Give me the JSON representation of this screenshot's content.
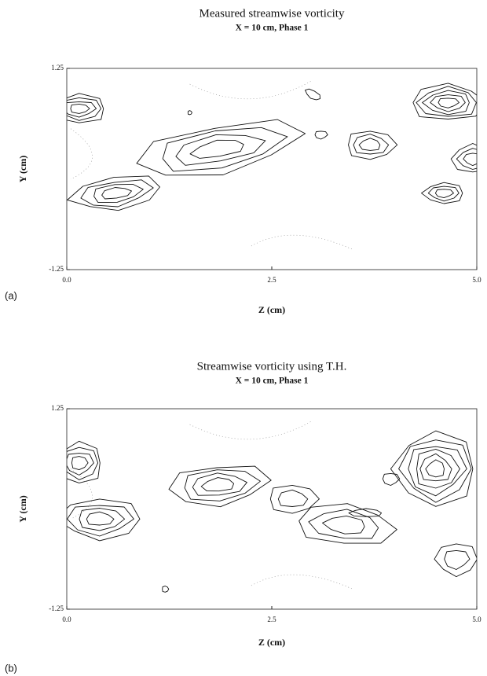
{
  "chart_data": [
    {
      "type": "contour",
      "title": "Measured streamwise vorticity",
      "subtitle": "X = 10 cm, Phase 1",
      "xlabel": "Z (cm)",
      "ylabel": "Y (cm)",
      "panel": "(a)",
      "xlim": [
        0,
        5
      ],
      "xticks": [
        {
          "value": 0,
          "label": "0.0"
        },
        2.5,
        {
          "value": 5,
          "label": "5.0"
        }
      ],
      "ylim": [
        -1.25,
        1.25
      ],
      "yticks": [
        -1.25,
        1.25
      ]
    },
    {
      "type": "contour",
      "title": "Streamwise vorticity using T.H.",
      "subtitle": "X = 10 cm, Phase 1",
      "xlabel": "Z (cm)",
      "ylabel": "Y (cm)",
      "panel": "(b)",
      "xlim": [
        0,
        5
      ],
      "xticks": [
        {
          "value": 0,
          "label": "0.0"
        },
        2.5,
        {
          "value": 5,
          "label": "5.0"
        }
      ],
      "ylim": [
        -1.25,
        1.25
      ],
      "yticks": [
        -1.25,
        1.25
      ]
    }
  ]
}
